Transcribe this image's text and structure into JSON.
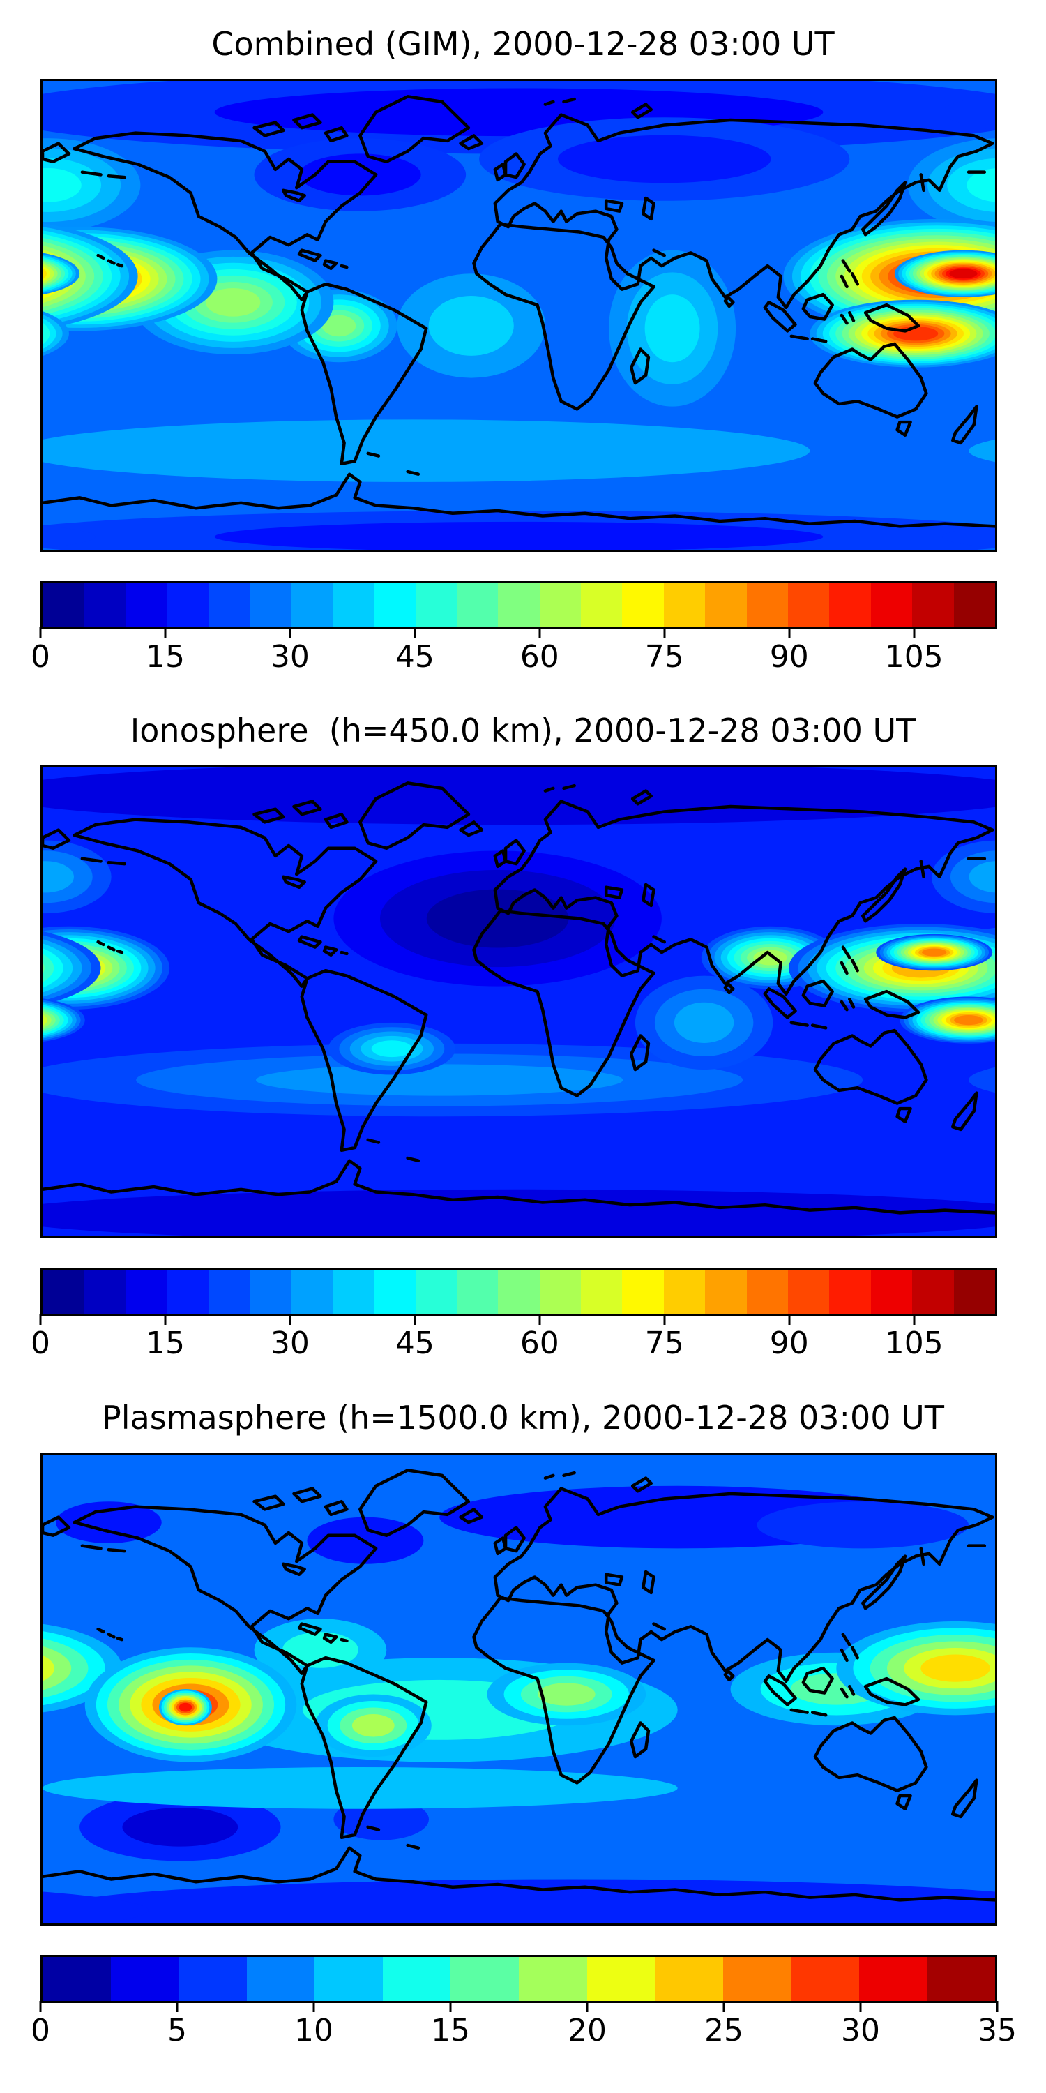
{
  "figure": {
    "background": "#ffffff",
    "text_color": "#000000",
    "coastline_color": "#000000",
    "map_border_color": "#000000"
  },
  "chart_data": [
    {
      "type": "heatmap",
      "subtype": "filled-contour-world-map",
      "title": "Combined (GIM), 2000-12-28 03:00 UT",
      "colormap": "jet",
      "projection": "equirectangular",
      "lon_range": [
        -180,
        180
      ],
      "lat_range": [
        -90,
        90
      ],
      "grid": false,
      "colorbar": {
        "min": 0,
        "max": 115,
        "segment_step": 5,
        "ticks": [
          0,
          15,
          30,
          45,
          60,
          75,
          90,
          105
        ],
        "orientation": "horizontal",
        "position": "bottom"
      },
      "base_value": 26,
      "features": [
        {
          "name": "arctic-low-band",
          "lon": 0,
          "lat": 78,
          "rx": 200,
          "ry": 16,
          "peak_value": 14
        },
        {
          "name": "labrador-low",
          "lon": -60,
          "lat": 54,
          "rx": 40,
          "ry": 14,
          "peak_value": 15
        },
        {
          "name": "eurasia-low",
          "lon": 55,
          "lat": 60,
          "rx": 70,
          "ry": 16,
          "peak_value": 17
        },
        {
          "name": "antarctic-low-band",
          "lon": 0,
          "lat": -85,
          "rx": 200,
          "ry": 10,
          "peak_value": 16
        },
        {
          "name": "south-midlat-cyan-band",
          "lon": -40,
          "lat": -52,
          "rx": 150,
          "ry": 12,
          "peak_value": 33
        },
        {
          "name": "nw-pacific-cyan",
          "lon": -178,
          "lat": 50,
          "rx": 35,
          "ry": 18,
          "peak_value": 44
        },
        {
          "name": "atlantic-equator-cyan",
          "lon": -18,
          "lat": -4,
          "rx": 28,
          "ry": 20,
          "peak_value": 38
        },
        {
          "name": "indian-ocean-cyan",
          "lon": 58,
          "lat": -5,
          "rx": 24,
          "ry": 30,
          "peak_value": 40
        },
        {
          "name": "south-america-green",
          "lon": -68,
          "lat": -4,
          "rx": 22,
          "ry": 14,
          "peak_value": 58
        },
        {
          "name": "east-pacific-green",
          "lon": -108,
          "lat": 5,
          "rx": 38,
          "ry": 20,
          "peak_value": 60
        },
        {
          "name": "west-pacific-hotspot",
          "lon": -166,
          "lat": 14,
          "rx": 52,
          "ry": 20,
          "peak_value": 96
        },
        {
          "name": "west-pacific-red-core",
          "lon": -173,
          "lat": 15,
          "rx": 20,
          "ry": 9,
          "peak_value": 102
        },
        {
          "name": "seasia-pacific-hotspot",
          "lon": 158,
          "lat": 15,
          "rx": 58,
          "ry": 22,
          "peak_value": 100
        },
        {
          "name": "seasia-red-core",
          "lon": 168,
          "lat": 16,
          "rx": 26,
          "ry": 9,
          "peak_value": 104
        },
        {
          "name": "melanesia-orange-lobe",
          "lon": 150,
          "lat": -7,
          "rx": 40,
          "ry": 13,
          "peak_value": 95
        }
      ]
    },
    {
      "type": "heatmap",
      "subtype": "filled-contour-world-map",
      "title": "Ionosphere  (h=450.0 km), 2000-12-28 03:00 UT",
      "colormap": "jet",
      "projection": "equirectangular",
      "lon_range": [
        -180,
        180
      ],
      "lat_range": [
        -90,
        90
      ],
      "grid": false,
      "colorbar": {
        "min": 0,
        "max": 115,
        "segment_step": 5,
        "ticks": [
          0,
          15,
          30,
          45,
          60,
          75,
          90,
          105
        ],
        "orientation": "horizontal",
        "position": "bottom"
      },
      "base_value": 18,
      "features": [
        {
          "name": "polar-low-band-north",
          "lon": 0,
          "lat": 80,
          "rx": 200,
          "ry": 12,
          "peak_value": 11
        },
        {
          "name": "euro-atlantic-deep-low",
          "lon": -8,
          "lat": 32,
          "rx": 62,
          "ry": 26,
          "peak_value": 4
        },
        {
          "name": "antarctic-low-band",
          "lon": 0,
          "lat": -82,
          "rx": 200,
          "ry": 10,
          "peak_value": 11
        },
        {
          "name": "south-midlat-cyan-band",
          "lon": -30,
          "lat": -30,
          "rx": 160,
          "ry": 14,
          "peak_value": 31
        },
        {
          "name": "nw-pacific-cyan",
          "lon": -179,
          "lat": 48,
          "rx": 25,
          "ry": 14,
          "peak_value": 33
        },
        {
          "name": "south-america-green",
          "lon": -48,
          "lat": -18,
          "rx": 24,
          "ry": 10,
          "peak_value": 42
        },
        {
          "name": "indian-ocean-cyan",
          "lon": 70,
          "lat": -8,
          "rx": 26,
          "ry": 18,
          "peak_value": 33
        },
        {
          "name": "india-yellow-green",
          "lon": 95,
          "lat": 17,
          "rx": 26,
          "ry": 12,
          "peak_value": 62
        },
        {
          "name": "west-pacific-hotspot",
          "lon": -170,
          "lat": 13,
          "rx": 38,
          "ry": 16,
          "peak_value": 78
        },
        {
          "name": "west-pacific-orange-core",
          "lon": -174,
          "lat": 14,
          "rx": 12,
          "ry": 5,
          "peak_value": 84
        },
        {
          "name": "seasia-yellow-band",
          "lon": 152,
          "lat": 13,
          "rx": 50,
          "ry": 17,
          "peak_value": 80
        },
        {
          "name": "seasia-orange-core-north",
          "lon": 157,
          "lat": 19,
          "rx": 22,
          "ry": 7,
          "peak_value": 86
        },
        {
          "name": "melanesia-orange-core",
          "lon": 170,
          "lat": -7,
          "rx": 26,
          "ry": 9,
          "peak_value": 86
        }
      ]
    },
    {
      "type": "heatmap",
      "subtype": "filled-contour-world-map",
      "title": "Plasmasphere (h=1500.0 km), 2000-12-28 03:00 UT",
      "colormap": "jet",
      "projection": "equirectangular",
      "lon_range": [
        -180,
        180
      ],
      "lat_range": [
        -90,
        90
      ],
      "grid": false,
      "colorbar": {
        "min": 0,
        "max": 35,
        "segment_step": 2.5,
        "ticks": [
          0,
          5,
          10,
          15,
          20,
          25,
          30,
          35
        ],
        "orientation": "horizontal",
        "position": "bottom"
      },
      "base_value": 8,
      "features": [
        {
          "name": "siberia-low-band",
          "lon": 60,
          "lat": 66,
          "rx": 90,
          "ry": 12,
          "peak_value": 5
        },
        {
          "name": "dateline-north-low",
          "lon": 130,
          "lat": 63,
          "rx": 40,
          "ry": 9,
          "peak_value": 6
        },
        {
          "name": "alaska-low",
          "lon": -155,
          "lat": 64,
          "rx": 20,
          "ry": 8,
          "peak_value": 5
        },
        {
          "name": "labrador-low",
          "lon": -58,
          "lat": 57,
          "rx": 22,
          "ry": 9,
          "peak_value": 5
        },
        {
          "name": "antarctic-low-band",
          "lon": 20,
          "lat": -85,
          "rx": 200,
          "ry": 12,
          "peak_value": 5.5
        },
        {
          "name": "se-pacific-deep-low",
          "lon": -128,
          "lat": -53,
          "rx": 38,
          "ry": 13,
          "peak_value": 3
        },
        {
          "name": "falkland-low",
          "lon": -52,
          "lat": -50,
          "rx": 18,
          "ry": 8,
          "peak_value": 6
        },
        {
          "name": "south-midlat-band",
          "lon": -60,
          "lat": -38,
          "rx": 120,
          "ry": 8,
          "peak_value": 11
        },
        {
          "name": "equator-cyan-band",
          "lon": -30,
          "lat": -8,
          "rx": 90,
          "ry": 20,
          "peak_value": 14
        },
        {
          "name": "caribbean-cyan",
          "lon": -75,
          "lat": 15,
          "rx": 25,
          "ry": 12,
          "peak_value": 14
        },
        {
          "name": "africa-green",
          "lon": 18,
          "lat": -2,
          "rx": 30,
          "ry": 12,
          "peak_value": 18
        },
        {
          "name": "south-america-green",
          "lon": -55,
          "lat": -14,
          "rx": 22,
          "ry": 12,
          "peak_value": 19
        },
        {
          "name": "seasia-teal-extension",
          "lon": 120,
          "lat": 0,
          "rx": 40,
          "ry": 14,
          "peak_value": 16
        },
        {
          "name": "west-pacific-yellow",
          "lon": 165,
          "lat": 8,
          "rx": 45,
          "ry": 18,
          "peak_value": 23
        },
        {
          "name": "pacific-orange-spot",
          "lon": -124,
          "lat": -6,
          "rx": 40,
          "ry": 22,
          "peak_value": 28
        },
        {
          "name": "pacific-orange-core",
          "lon": -126,
          "lat": -7,
          "rx": 10,
          "ry": 7,
          "peak_value": 30
        }
      ]
    }
  ]
}
